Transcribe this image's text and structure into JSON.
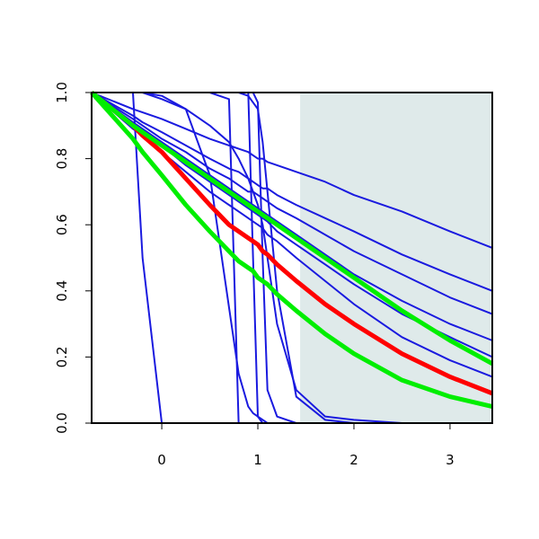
{
  "chart_data": {
    "type": "line",
    "x": [
      -0.73,
      -0.3,
      -0.2,
      0,
      0.25,
      0.5,
      0.7,
      0.8,
      0.9,
      0.95,
      1,
      1.05,
      1.1,
      1.2,
      1.4,
      1.7,
      2,
      2.5,
      3,
      3.44
    ],
    "xlim": [
      -0.73,
      3.44
    ],
    "ylim": [
      0,
      1
    ],
    "xticks": [
      0,
      1,
      2,
      3
    ],
    "yticks": [
      {
        "value": 0,
        "label": "0.0"
      },
      0.2,
      0.4,
      0.6,
      0.8,
      {
        "value": 1,
        "label": "1.0"
      }
    ],
    "shaded_region": {
      "x": [
        1.44,
        3.44
      ],
      "color": "#dfeaea"
    },
    "series": [
      {
        "color": "#1a1adf",
        "line_width": 2,
        "values": [
          1,
          0.95,
          0.94,
          0.92,
          0.89,
          0.86,
          0.84,
          0.83,
          0.82,
          0.81,
          0.8,
          0.8,
          0.79,
          0.78,
          0.76,
          0.73,
          0.69,
          0.64,
          0.58,
          0.53
        ]
      },
      {
        "color": "#1a1adf",
        "line_width": 2,
        "values": [
          1,
          0.93,
          0.91,
          0.88,
          0.84,
          0.8,
          0.77,
          0.76,
          0.74,
          0.73,
          0.72,
          0.71,
          0.71,
          0.69,
          0.66,
          0.62,
          0.58,
          0.51,
          0.45,
          0.4
        ]
      },
      {
        "color": "#1a1adf",
        "line_width": 2,
        "values": [
          1,
          0.92,
          0.9,
          0.86,
          0.82,
          0.77,
          0.74,
          0.72,
          0.7,
          0.7,
          0.69,
          0.68,
          0.67,
          0.65,
          0.62,
          0.57,
          0.52,
          0.45,
          0.38,
          0.33
        ]
      },
      {
        "color": "#1a1adf",
        "line_width": 2,
        "values": [
          1,
          0.91,
          0.89,
          0.85,
          0.8,
          0.75,
          0.71,
          0.69,
          0.67,
          0.66,
          0.65,
          0.64,
          0.63,
          0.61,
          0.57,
          0.51,
          0.45,
          0.37,
          0.3,
          0.25
        ]
      },
      {
        "color": "#1a1adf",
        "line_width": 2,
        "values": [
          1,
          0.9,
          0.88,
          0.84,
          0.78,
          0.73,
          0.69,
          0.67,
          0.65,
          0.64,
          0.63,
          0.62,
          0.61,
          0.58,
          0.54,
          0.48,
          0.42,
          0.33,
          0.26,
          0.2
        ]
      },
      {
        "color": "#1a1adf",
        "line_width": 2,
        "values": [
          1,
          0.89,
          0.87,
          0.82,
          0.76,
          0.7,
          0.66,
          0.64,
          0.62,
          0.61,
          0.6,
          0.59,
          0.57,
          0.55,
          0.5,
          0.43,
          0.36,
          0.26,
          0.19,
          0.14
        ]
      },
      {
        "color": "#1a1adf",
        "line_width": 2,
        "values": [
          1,
          1,
          0.5,
          0,
          0,
          0,
          0,
          0,
          0,
          0,
          0,
          0,
          0,
          0,
          0,
          0,
          0,
          0,
          0,
          0
        ]
      },
      {
        "color": "#1a1adf",
        "line_width": 2,
        "values": [
          1,
          1,
          1,
          1,
          1,
          1,
          0.98,
          0,
          0,
          0,
          0,
          0,
          0,
          0,
          0,
          0,
          0,
          0,
          0,
          0
        ]
      },
      {
        "color": "#1a1adf",
        "line_width": 2,
        "values": [
          1,
          1,
          1,
          0.99,
          0.95,
          0.75,
          0.35,
          0.15,
          0.05,
          0.03,
          0.02,
          0.01,
          0,
          0,
          0,
          0,
          0,
          0,
          0,
          0
        ]
      },
      {
        "color": "#1a1adf",
        "line_width": 2,
        "values": [
          1,
          1,
          1,
          1,
          1,
          1,
          1,
          1,
          1,
          0.5,
          0.02,
          0,
          0,
          0,
          0,
          0,
          0,
          0,
          0,
          0
        ]
      },
      {
        "color": "#1a1adf",
        "line_width": 2,
        "values": [
          1,
          1,
          1,
          1,
          1,
          1,
          1,
          1,
          1,
          1,
          0.97,
          0.5,
          0.1,
          0.02,
          0,
          0,
          0,
          0,
          0,
          0
        ]
      },
      {
        "color": "#1a1adf",
        "line_width": 2,
        "values": [
          1,
          1,
          1,
          1,
          1,
          1,
          1,
          1,
          0.99,
          0.97,
          0.95,
          0.85,
          0.7,
          0.4,
          0.08,
          0.01,
          0,
          0,
          0,
          0
        ]
      },
      {
        "color": "#1a1adf",
        "line_width": 2,
        "values": [
          1,
          1,
          1,
          0.98,
          0.95,
          0.9,
          0.85,
          0.8,
          0.74,
          0.7,
          0.66,
          0.6,
          0.5,
          0.3,
          0.1,
          0.02,
          0.01,
          0,
          0,
          0
        ]
      },
      {
        "color": "#ff0000",
        "line_width": 5,
        "values": [
          1,
          0.9,
          0.87,
          0.82,
          0.74,
          0.66,
          0.6,
          0.58,
          0.56,
          0.55,
          0.54,
          0.52,
          0.51,
          0.48,
          0.43,
          0.36,
          0.3,
          0.21,
          0.14,
          0.09
        ]
      },
      {
        "color": "#00ee00",
        "line_width": 5,
        "values": [
          1,
          0.86,
          0.82,
          0.75,
          0.66,
          0.58,
          0.52,
          0.49,
          0.47,
          0.46,
          0.44,
          0.43,
          0.42,
          0.39,
          0.34,
          0.27,
          0.21,
          0.13,
          0.08,
          0.05
        ]
      },
      {
        "color": "#00ee00",
        "line_width": 5,
        "values": [
          1,
          0.9,
          0.88,
          0.84,
          0.79,
          0.74,
          0.7,
          0.68,
          0.66,
          0.65,
          0.64,
          0.63,
          0.62,
          0.6,
          0.56,
          0.5,
          0.44,
          0.34,
          0.25,
          0.18
        ]
      }
    ]
  }
}
